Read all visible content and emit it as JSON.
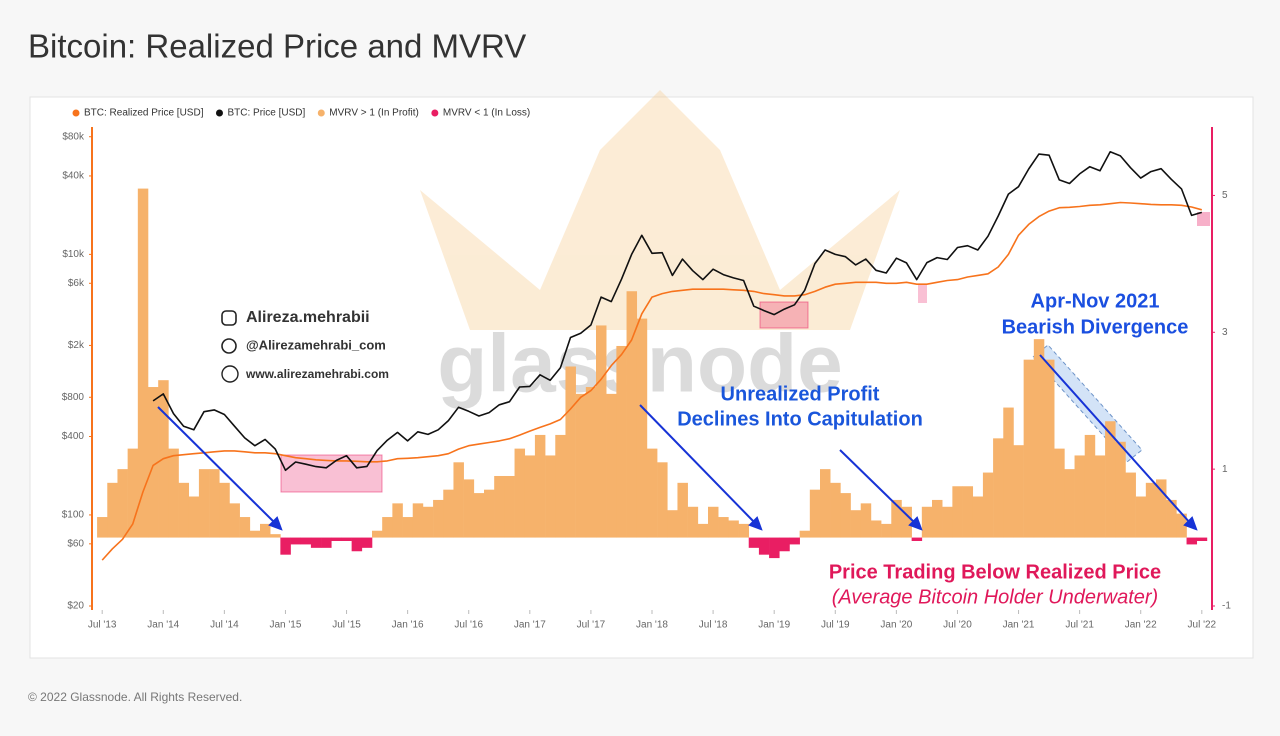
{
  "chart_data": {
    "type": "line",
    "title": "Bitcoin: Realized Price and MVRV",
    "footer": "© 2022 Glassnode. All Rights Reserved.",
    "watermark": "glassnode",
    "author": [
      "Alireza.mehrabii",
      "@Alirezamehrabi_com",
      "www.alirezamehrabi.com"
    ],
    "annotations": [
      {
        "lines": [
          "Apr-Nov 2021",
          "Bearish Divergence"
        ],
        "color": "#1a4fe0"
      },
      {
        "lines": [
          "Unrealized Profit",
          "Declines Into Capitulation"
        ],
        "color": "#1a56db"
      },
      {
        "lines": [
          "Price Trading Below Realized Price",
          "(Average Bitcoin Holder Underwater)"
        ],
        "color": "#e0185a"
      }
    ],
    "log_scale": true,
    "xlim": [
      "2013-06",
      "2022-08"
    ],
    "xticks": [
      {
        "value": "2013-07",
        "label": "Jul '13"
      },
      {
        "value": "2014-01",
        "label": "Jan '14"
      },
      {
        "value": "2014-07",
        "label": "Jul '14"
      },
      {
        "value": "2015-01",
        "label": "Jan '15"
      },
      {
        "value": "2015-07",
        "label": "Jul '15"
      },
      {
        "value": "2016-01",
        "label": "Jan '16"
      },
      {
        "value": "2016-07",
        "label": "Jul '16"
      },
      {
        "value": "2017-01",
        "label": "Jan '17"
      },
      {
        "value": "2017-07",
        "label": "Jul '17"
      },
      {
        "value": "2018-01",
        "label": "Jan '18"
      },
      {
        "value": "2018-07",
        "label": "Jul '18"
      },
      {
        "value": "2019-01",
        "label": "Jan '19"
      },
      {
        "value": "2019-07",
        "label": "Jul '19"
      },
      {
        "value": "2020-01",
        "label": "Jan '20"
      },
      {
        "value": "2020-07",
        "label": "Jul '20"
      },
      {
        "value": "2021-01",
        "label": "Jan '21"
      },
      {
        "value": "2021-07",
        "label": "Jul '21"
      },
      {
        "value": "2022-01",
        "label": "Jan '22"
      },
      {
        "value": "2022-07",
        "label": "Jul '22"
      }
    ],
    "ylim": [
      20,
      95000
    ],
    "yticks": [
      {
        "value": 20,
        "label": "$20"
      },
      {
        "value": 60,
        "label": "$60"
      },
      {
        "value": 100,
        "label": "$100"
      },
      {
        "value": 400,
        "label": "$400"
      },
      {
        "value": 800,
        "label": "$800"
      },
      {
        "value": 2000,
        "label": "$2k"
      },
      {
        "value": 6000,
        "label": "$6k"
      },
      {
        "value": 10000,
        "label": "$10k"
      },
      {
        "value": 40000,
        "label": "$40k"
      },
      {
        "value": 80000,
        "label": "$80k"
      }
    ],
    "y2lim": [
      -1,
      6
    ],
    "y2ticks": [
      -1,
      1,
      3,
      5
    ],
    "x": [
      "2013-07",
      "2013-08",
      "2013-09",
      "2013-10",
      "2013-11",
      "2013-12",
      "2014-01",
      "2014-02",
      "2014-03",
      "2014-04",
      "2014-05",
      "2014-06",
      "2014-07",
      "2014-08",
      "2014-09",
      "2014-10",
      "2014-11",
      "2014-12",
      "2015-01",
      "2015-02",
      "2015-03",
      "2015-04",
      "2015-05",
      "2015-06",
      "2015-07",
      "2015-08",
      "2015-09",
      "2015-10",
      "2015-11",
      "2015-12",
      "2016-01",
      "2016-02",
      "2016-03",
      "2016-04",
      "2016-05",
      "2016-06",
      "2016-07",
      "2016-08",
      "2016-09",
      "2016-10",
      "2016-11",
      "2016-12",
      "2017-01",
      "2017-02",
      "2017-03",
      "2017-04",
      "2017-05",
      "2017-06",
      "2017-07",
      "2017-08",
      "2017-09",
      "2017-10",
      "2017-11",
      "2017-12",
      "2018-01",
      "2018-02",
      "2018-03",
      "2018-04",
      "2018-05",
      "2018-06",
      "2018-07",
      "2018-08",
      "2018-09",
      "2018-10",
      "2018-11",
      "2018-12",
      "2019-01",
      "2019-02",
      "2019-03",
      "2019-04",
      "2019-05",
      "2019-06",
      "2019-07",
      "2019-08",
      "2019-09",
      "2019-10",
      "2019-11",
      "2019-12",
      "2020-01",
      "2020-02",
      "2020-03",
      "2020-04",
      "2020-05",
      "2020-06",
      "2020-07",
      "2020-08",
      "2020-09",
      "2020-10",
      "2020-11",
      "2020-12",
      "2021-01",
      "2021-02",
      "2021-03",
      "2021-04",
      "2021-05",
      "2021-06",
      "2021-07",
      "2021-08",
      "2021-09",
      "2021-10",
      "2021-11",
      "2021-12",
      "2022-01",
      "2022-02",
      "2022-03",
      "2022-04",
      "2022-05",
      "2022-06",
      "2022-07"
    ],
    "series": [
      {
        "name": "BTC: Realized Price [USD]",
        "color": "#f7731c",
        "kind": "line",
        "values": [
          45,
          55,
          65,
          85,
          150,
          240,
          270,
          285,
          290,
          295,
          300,
          305,
          310,
          310,
          305,
          300,
          300,
          295,
          285,
          275,
          270,
          265,
          262,
          260,
          260,
          258,
          256,
          256,
          260,
          270,
          272,
          275,
          280,
          285,
          295,
          320,
          340,
          350,
          360,
          370,
          385,
          410,
          440,
          470,
          500,
          540,
          650,
          800,
          900,
          1100,
          1400,
          1700,
          2200,
          3500,
          4700,
          5000,
          5200,
          5300,
          5400,
          5400,
          5400,
          5400,
          5350,
          5300,
          5200,
          5000,
          4900,
          4800,
          4800,
          4900,
          5200,
          5600,
          5900,
          6000,
          6100,
          6100,
          6100,
          6000,
          6000,
          6100,
          5900,
          5900,
          6100,
          6300,
          6400,
          6700,
          6900,
          7100,
          8000,
          10000,
          14000,
          17000,
          19500,
          21500,
          22800,
          23000,
          23300,
          23800,
          24000,
          24500,
          25000,
          24800,
          24500,
          24200,
          24000,
          24000,
          23800,
          23100,
          22000
        ]
      },
      {
        "name": "BTC: Price [USD]",
        "color": "#111111",
        "kind": "line",
        "values": [
          null,
          null,
          null,
          null,
          null,
          750,
          850,
          600,
          480,
          450,
          620,
          640,
          590,
          480,
          390,
          340,
          380,
          320,
          220,
          255,
          245,
          235,
          230,
          262,
          285,
          230,
          236,
          312,
          375,
          430,
          370,
          435,
          415,
          450,
          530,
          670,
          625,
          575,
          610,
          700,
          740,
          960,
          970,
          1190,
          1080,
          1350,
          2300,
          2480,
          2870,
          4700,
          4340,
          6450,
          10000,
          14000,
          10200,
          10300,
          6900,
          9200,
          7500,
          6400,
          7700,
          7000,
          6600,
          6300,
          4000,
          3700,
          3450,
          3800,
          4100,
          5300,
          8500,
          10800,
          10000,
          9600,
          8300,
          9200,
          7550,
          7200,
          9350,
          8600,
          6400,
          8650,
          9450,
          9140,
          11300,
          11650,
          10800,
          13800,
          19700,
          29000,
          33100,
          45200,
          58800,
          57700,
          37300,
          35000,
          41500,
          47100,
          43800,
          61300,
          57000,
          46300,
          38500,
          43200,
          45500,
          37700,
          31800,
          19900,
          21000
        ]
      },
      {
        "name": "MVRV > 1 (In Profit)",
        "color": "#f6b26b",
        "kind": "bar",
        "axis": "y2",
        "values": [
          0.3,
          0.8,
          1.0,
          1.3,
          5.1,
          2.2,
          2.3,
          1.3,
          0.8,
          0.6,
          1.0,
          1.0,
          0.8,
          0.5,
          0.3,
          0.1,
          0.2,
          0.05,
          null,
          null,
          null,
          null,
          null,
          null,
          null,
          null,
          null,
          0.1,
          0.3,
          0.5,
          0.3,
          0.5,
          0.45,
          0.55,
          0.7,
          1.1,
          0.85,
          0.65,
          0.7,
          0.9,
          0.9,
          1.3,
          1.2,
          1.5,
          1.2,
          1.5,
          2.5,
          2.1,
          2.2,
          3.1,
          2.1,
          2.8,
          3.6,
          3.2,
          1.3,
          1.1,
          0.4,
          0.8,
          0.45,
          0.2,
          0.45,
          0.3,
          0.25,
          0.2,
          null,
          null,
          null,
          null,
          null,
          0.1,
          0.7,
          1.0,
          0.8,
          0.65,
          0.4,
          0.5,
          0.25,
          0.2,
          0.55,
          0.45,
          null,
          0.45,
          0.55,
          0.45,
          0.75,
          0.75,
          0.6,
          0.95,
          1.45,
          1.9,
          1.35,
          2.6,
          2.9,
          2.6,
          1.3,
          1.0,
          1.2,
          1.5,
          1.2,
          1.7,
          1.4,
          0.95,
          0.6,
          0.8,
          0.85,
          0.55,
          0.35,
          null,
          null
        ]
      },
      {
        "name": "MVRV < 1 (In Loss)",
        "color": "#e91e63",
        "kind": "bar",
        "axis": "y2",
        "values": [
          null,
          null,
          null,
          null,
          null,
          null,
          null,
          null,
          null,
          null,
          null,
          null,
          null,
          null,
          null,
          null,
          null,
          null,
          -0.25,
          -0.1,
          -0.1,
          -0.15,
          -0.15,
          -0.05,
          -0.05,
          -0.2,
          -0.15,
          null,
          null,
          null,
          null,
          null,
          null,
          null,
          null,
          null,
          null,
          null,
          null,
          null,
          null,
          null,
          null,
          null,
          null,
          null,
          null,
          null,
          null,
          null,
          null,
          null,
          null,
          null,
          null,
          null,
          null,
          null,
          null,
          null,
          null,
          null,
          null,
          null,
          -0.15,
          -0.25,
          -0.3,
          -0.2,
          -0.1,
          null,
          null,
          null,
          null,
          null,
          null,
          null,
          null,
          null,
          null,
          null,
          -0.05,
          null,
          null,
          null,
          null,
          null,
          null,
          null,
          null,
          null,
          null,
          null,
          null,
          null,
          null,
          null,
          null,
          null,
          null,
          null,
          null,
          null,
          null,
          null,
          null,
          null,
          null,
          -0.1,
          -0.05
        ]
      }
    ]
  }
}
